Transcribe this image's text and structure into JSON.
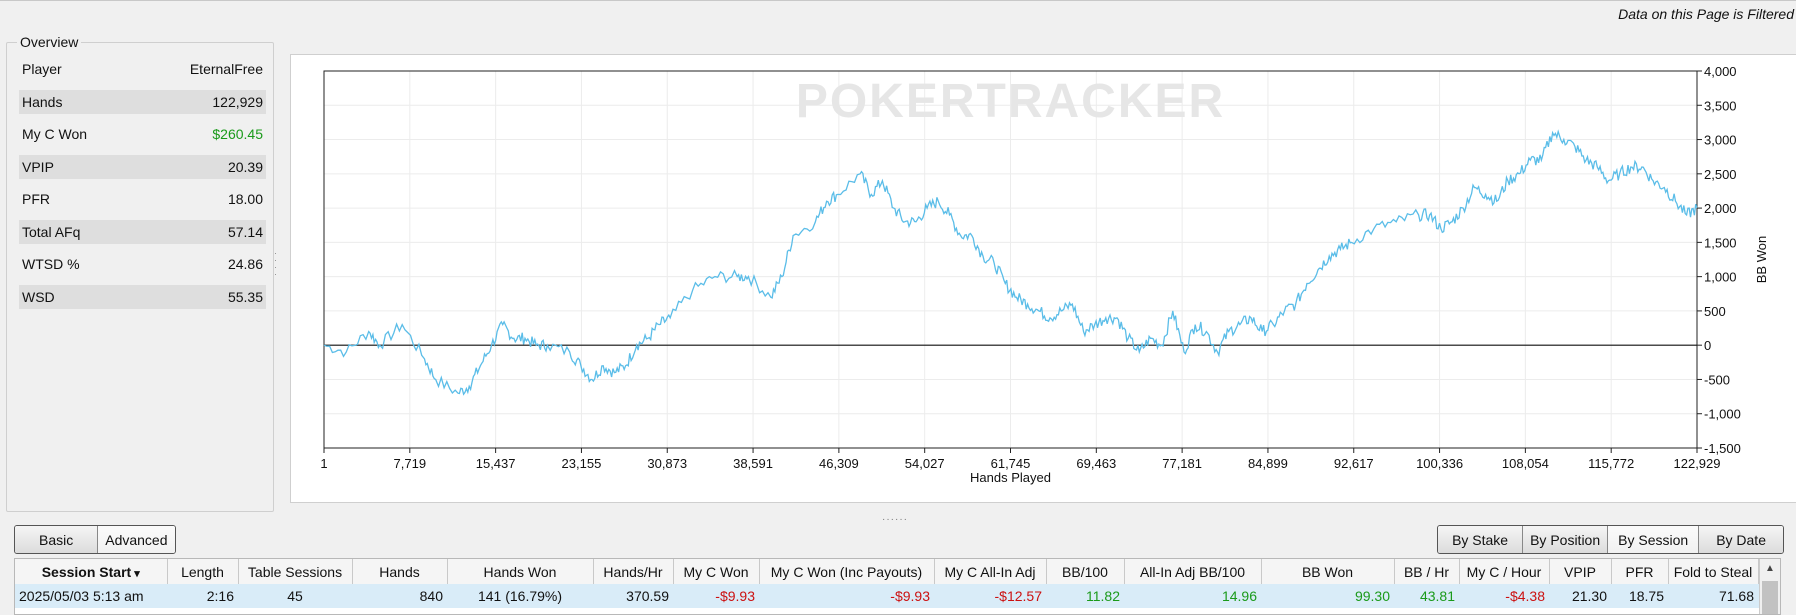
{
  "header": {
    "filter_note": "Data on this Page is Filtered"
  },
  "overview": {
    "title": "Overview",
    "rows": [
      {
        "label": "Player",
        "value": "EternalFree"
      },
      {
        "label": "Hands",
        "value": "122,929"
      },
      {
        "label": "My C Won",
        "value": "$260.45"
      },
      {
        "label": "VPIP",
        "value": "20.39"
      },
      {
        "label": "PFR",
        "value": "18.00"
      },
      {
        "label": "Total AFq",
        "value": "57.14"
      },
      {
        "label": "WTSD %",
        "value": "24.86"
      },
      {
        "label": "WSD",
        "value": "55.35"
      }
    ]
  },
  "chart_data": {
    "type": "line",
    "watermark": "POKERTRACKER",
    "xlabel": "Hands Played",
    "ylabel": "BB Won",
    "x_ticks": [
      "1",
      "7,719",
      "15,437",
      "23,155",
      "30,873",
      "38,591",
      "46,309",
      "54,027",
      "61,745",
      "69,463",
      "77,181",
      "84,899",
      "92,617",
      "100,336",
      "108,054",
      "115,772",
      "122,929"
    ],
    "y_ticks": [
      "4,000",
      "3,500",
      "3,000",
      "2,500",
      "2,000",
      "1,500",
      "1,000",
      "500",
      "0",
      "-500",
      "-1,000",
      "-1,500"
    ],
    "xlim": [
      1,
      122929
    ],
    "ylim": [
      -1500,
      4000
    ],
    "grid": true,
    "colors": {
      "line": "#5bbde8"
    },
    "series": [
      {
        "x": [
          1,
          2000,
          4000,
          5000,
          7000,
          9000,
          10000,
          12000,
          13000,
          14000,
          15000,
          16000,
          17000,
          18000,
          19000,
          20000,
          22000,
          23000,
          24000,
          25000,
          26000,
          27000,
          28000,
          29000,
          30000,
          31000,
          33000,
          35000,
          37000,
          38000,
          40000,
          41000,
          42000,
          44000,
          45000,
          46000,
          48000,
          49000,
          50000,
          51000,
          52000,
          53000,
          54000,
          55000,
          56000,
          57000,
          58000,
          59000,
          60000,
          61000,
          62000,
          63000,
          64000,
          65000,
          66000,
          67000,
          68000,
          69000,
          70000,
          71000,
          72000,
          73000,
          74000,
          75000,
          76000,
          77000,
          78000,
          79000,
          80000,
          81000,
          82000,
          83000,
          84000,
          85000,
          86000,
          87000,
          88000,
          89000,
          90000,
          91000,
          92000,
          94000,
          96000,
          98000,
          99000,
          100000,
          101000,
          102000,
          103000,
          104000,
          105000,
          106000,
          107000,
          108000,
          109000,
          110000,
          111000,
          112000,
          113000,
          114000,
          115000,
          116000,
          117000,
          118000,
          119000,
          120000,
          121000,
          122000,
          122929
        ],
        "y": [
          0,
          -100,
          200,
          0,
          300,
          -200,
          -500,
          -700,
          -600,
          -300,
          0,
          300,
          100,
          100,
          0,
          0,
          -100,
          -300,
          -500,
          -300,
          -400,
          -300,
          0,
          100,
          300,
          400,
          800,
          1000,
          1000,
          1000,
          700,
          1000,
          1600,
          1800,
          2100,
          2200,
          2500,
          2200,
          2400,
          2000,
          1800,
          1800,
          2000,
          2100,
          1900,
          1600,
          1600,
          1300,
          1200,
          900,
          700,
          600,
          500,
          400,
          500,
          600,
          200,
          300,
          400,
          400,
          100,
          -100,
          100,
          0,
          500,
          -100,
          300,
          200,
          -100,
          200,
          300,
          400,
          200,
          300,
          500,
          600,
          900,
          1100,
          1300,
          1400,
          1500,
          1700,
          1800,
          1900,
          1900,
          1700,
          1800,
          2000,
          2300,
          2200,
          2100,
          2400,
          2500,
          2700,
          2700,
          3100,
          3000,
          2900,
          2700,
          2600,
          2400,
          2500,
          2600,
          2600,
          2400,
          2300,
          2100,
          1900,
          2000
        ]
      }
    ]
  },
  "toolbar": {
    "left_tabs": [
      "Basic",
      "Advanced"
    ],
    "right_tabs": [
      "By Stake",
      "By Position",
      "By Session",
      "By Date"
    ]
  },
  "table": {
    "columns": [
      "Session Start",
      "Length",
      "Table Sessions",
      "Hands",
      "Hands Won",
      "Hands/Hr",
      "My C Won",
      "My C Won (Inc Payouts)",
      "My C All-In Adj",
      "BB/100",
      "All-In Adj BB/100",
      "BB Won",
      "BB / Hr",
      "My C / Hour",
      "VPIP",
      "PFR",
      "Fold to Steal",
      "⋮"
    ],
    "rows": [
      [
        "2025/05/03  5:13 am",
        "2:16",
        "45",
        "840",
        "141 (16.79%)",
        "370.59",
        "-$9.93",
        "-$9.93",
        "-$12.57",
        "11.82",
        "14.96",
        "99.30",
        "43.81",
        "-$4.38",
        "21.30",
        "18.75",
        "71.68",
        ""
      ]
    ]
  }
}
